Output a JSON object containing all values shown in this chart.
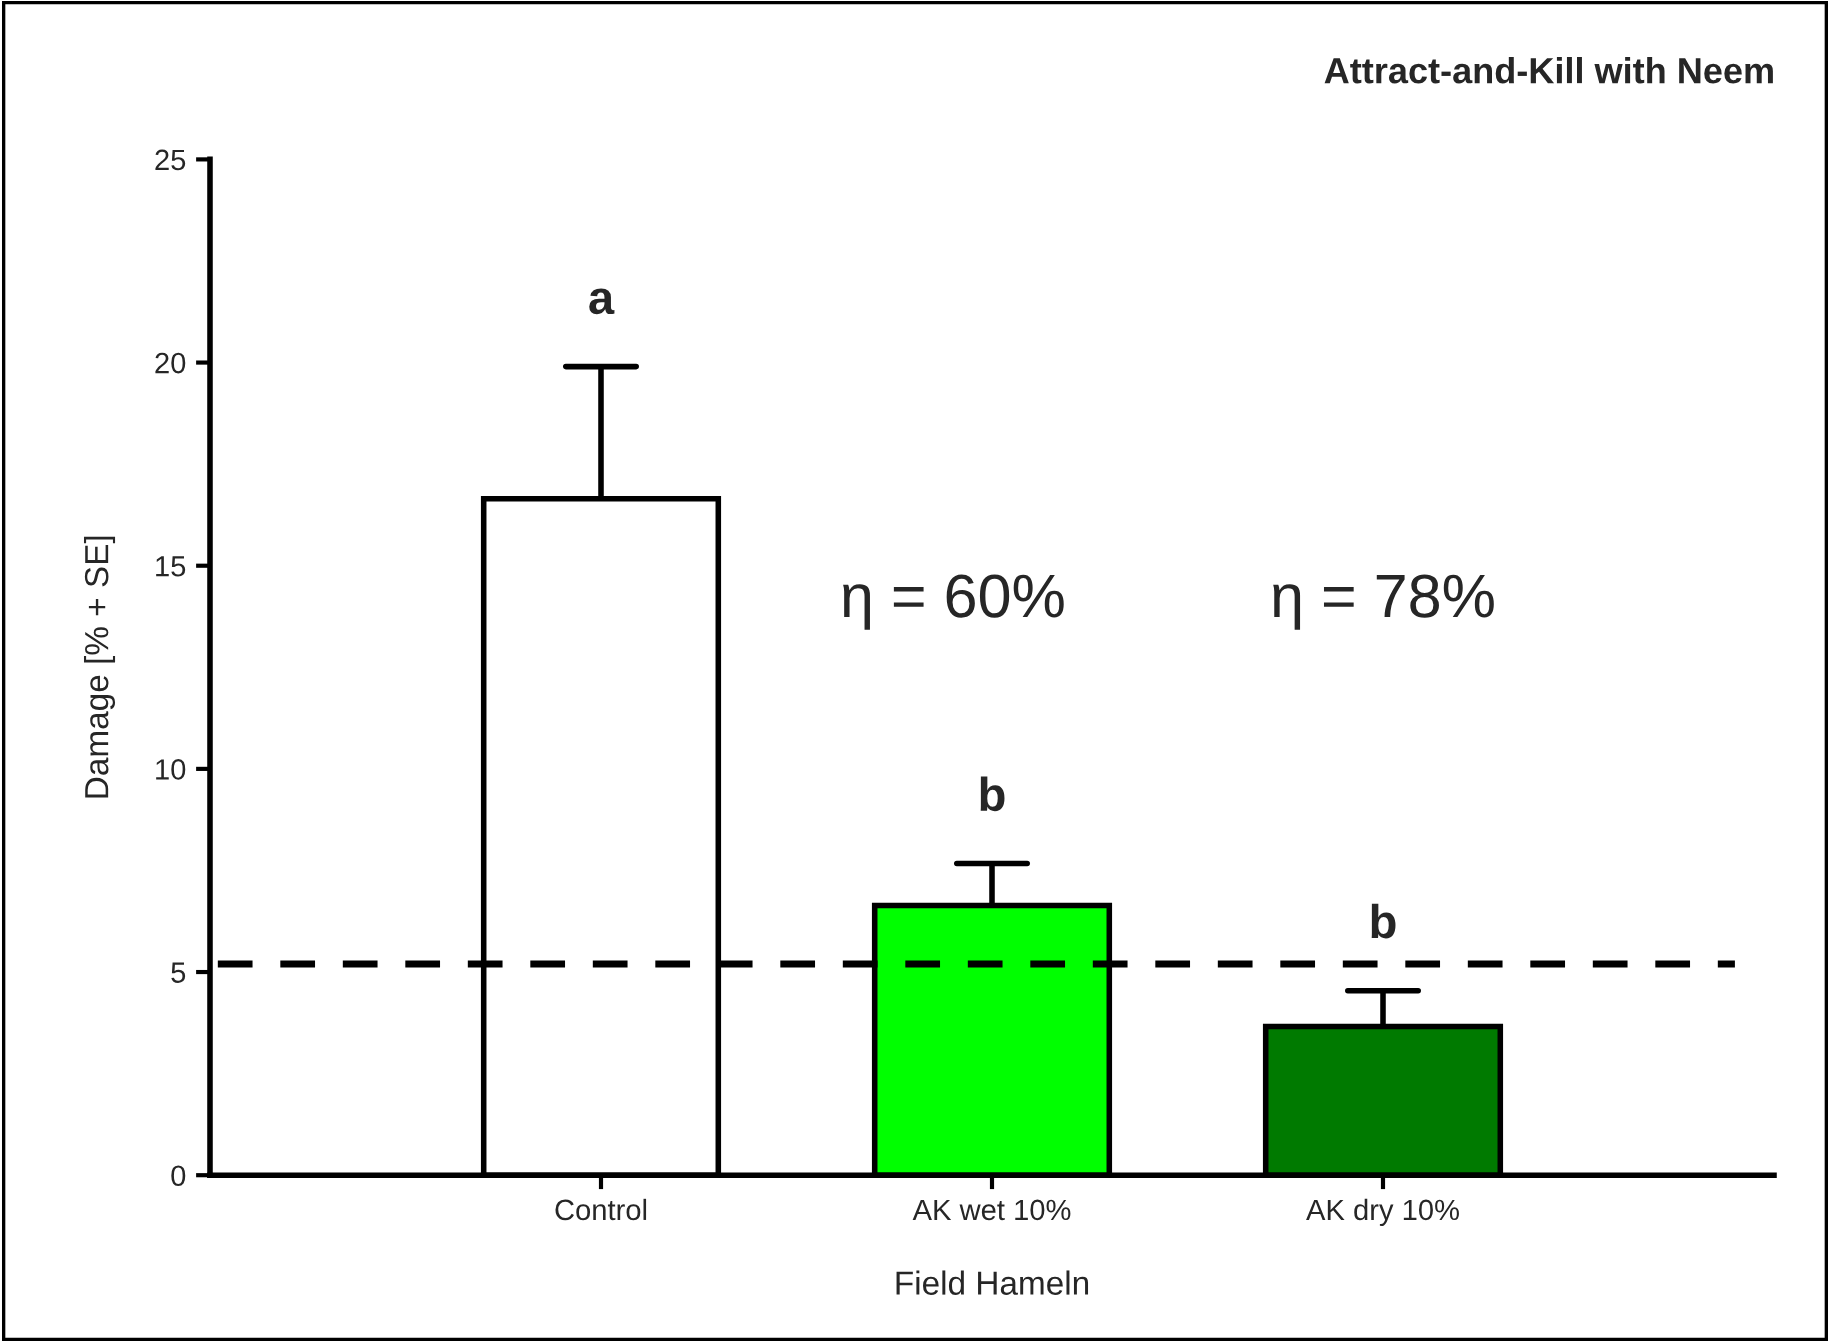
{
  "chart_data": {
    "type": "bar",
    "title": "Attract-and-Kill with Neem",
    "xlabel": "Field Hameln",
    "ylabel": "Damage [% + SE]",
    "categories": [
      "Control",
      "AK wet 10%",
      "AK dry 10%"
    ],
    "values": [
      16.65,
      6.64,
      3.66
    ],
    "colors": [
      "#ffffff",
      "#00ff00",
      "#007a00"
    ],
    "errors": [
      [
        16.65,
        19.9
      ],
      [
        6.64,
        7.67
      ],
      [
        3.66,
        4.54
      ]
    ],
    "ylim": [
      0,
      25
    ],
    "yticks": [
      0,
      5,
      10,
      15,
      20,
      25
    ],
    "ref_lines": [
      {
        "axis": "y",
        "value": 5.2,
        "line_style": "dashed",
        "color": "#000000"
      }
    ],
    "annotations": [
      "a",
      "b",
      "b",
      "η = 60%",
      "η = 78%"
    ],
    "grid": false,
    "legend": false
  }
}
